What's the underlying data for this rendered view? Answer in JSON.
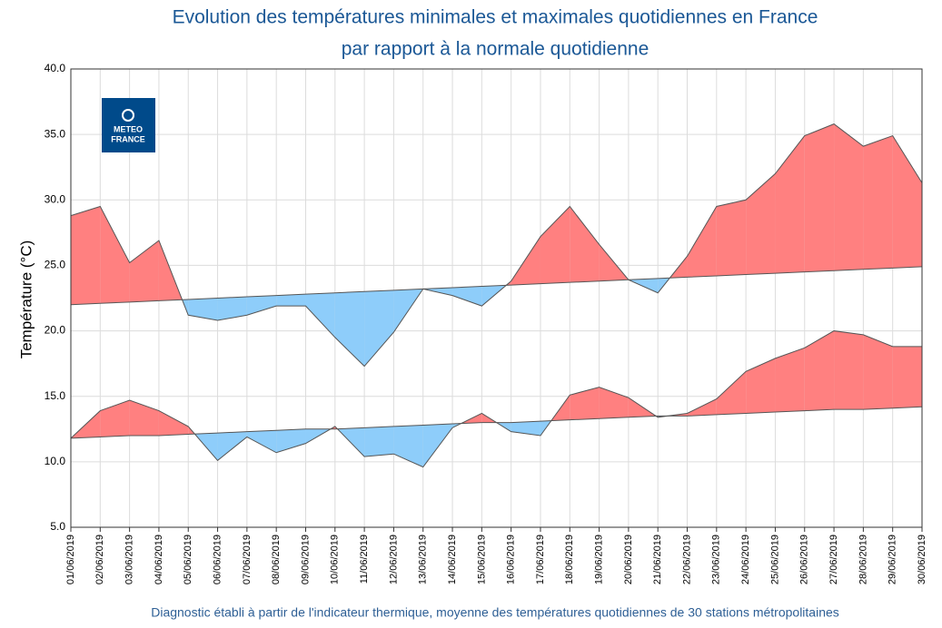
{
  "chart_data": {
    "type": "anomaly-area",
    "title": [
      "Evolution des températures minimales et maximales quotidiennes en France",
      "par rapport à la normale quotidienne"
    ],
    "y_label": "Température (°C)",
    "caption": "Diagnostic établi à partir de l'indicateur thermique, moyenne des températures quotidiennes de 30 stations métropolitaines",
    "logo_text": [
      "METEO",
      "FRANCE"
    ],
    "categories": [
      "01/06/2019",
      "02/06/2019",
      "03/06/2019",
      "04/06/2019",
      "05/06/2019",
      "06/06/2019",
      "07/06/2019",
      "08/06/2019",
      "09/06/2019",
      "10/06/2019",
      "11/06/2019",
      "12/06/2019",
      "13/06/2019",
      "14/06/2019",
      "15/06/2019",
      "16/06/2019",
      "17/06/2019",
      "18/06/2019",
      "19/06/2019",
      "20/06/2019",
      "21/06/2019",
      "22/06/2019",
      "23/06/2019",
      "24/06/2019",
      "25/06/2019",
      "26/06/2019",
      "27/06/2019",
      "28/06/2019",
      "29/06/2019",
      "30/06/2019"
    ],
    "series": [
      {
        "values": [
          28.8,
          29.5,
          25.2,
          26.9,
          21.2,
          20.8,
          21.2,
          21.9,
          21.9,
          19.5,
          17.3,
          19.9,
          23.2,
          22.7,
          21.9,
          23.8,
          27.2,
          29.5,
          26.6,
          23.9,
          22.9,
          25.7,
          29.5,
          30.0,
          32.0,
          34.9,
          35.8,
          34.1,
          34.9,
          31.3
        ],
        "normal": [
          22.0,
          22.1,
          22.2,
          22.3,
          22.4,
          22.5,
          22.6,
          22.7,
          22.8,
          22.9,
          23.0,
          23.1,
          23.2,
          23.3,
          23.4,
          23.5,
          23.6,
          23.7,
          23.8,
          23.9,
          24.0,
          24.1,
          24.2,
          24.3,
          24.4,
          24.5,
          24.6,
          24.7,
          24.8,
          24.9
        ]
      },
      {
        "values": [
          11.8,
          13.9,
          14.7,
          13.9,
          12.7,
          10.1,
          11.9,
          10.7,
          11.4,
          12.7,
          10.4,
          10.6,
          9.6,
          12.6,
          13.7,
          12.3,
          12.0,
          15.1,
          15.7,
          14.9,
          13.4,
          13.7,
          14.8,
          16.9,
          17.9,
          18.7,
          20.0,
          19.7,
          18.8,
          18.8
        ],
        "normal": [
          11.8,
          11.9,
          12.0,
          12.0,
          12.1,
          12.2,
          12.3,
          12.4,
          12.5,
          12.5,
          12.6,
          12.7,
          12.8,
          12.9,
          13.0,
          13.0,
          13.1,
          13.2,
          13.3,
          13.4,
          13.5,
          13.5,
          13.6,
          13.7,
          13.8,
          13.9,
          14.0,
          14.0,
          14.1,
          14.2
        ]
      }
    ],
    "above_color": "#ff8080",
    "below_color": "#8ecdfa",
    "line_color": "#555555",
    "ylim": [
      5,
      40
    ],
    "yticks": [
      {
        "value": 5,
        "label": "5.0"
      },
      {
        "value": 10,
        "label": "10.0"
      },
      {
        "value": 15,
        "label": "15.0"
      },
      {
        "value": 20,
        "label": "20.0"
      },
      {
        "value": 25,
        "label": "25.0"
      },
      {
        "value": 30,
        "label": "30.0"
      },
      {
        "value": 35,
        "label": "35.0"
      },
      {
        "value": 40,
        "label": "40.0"
      }
    ],
    "grid": true
  }
}
